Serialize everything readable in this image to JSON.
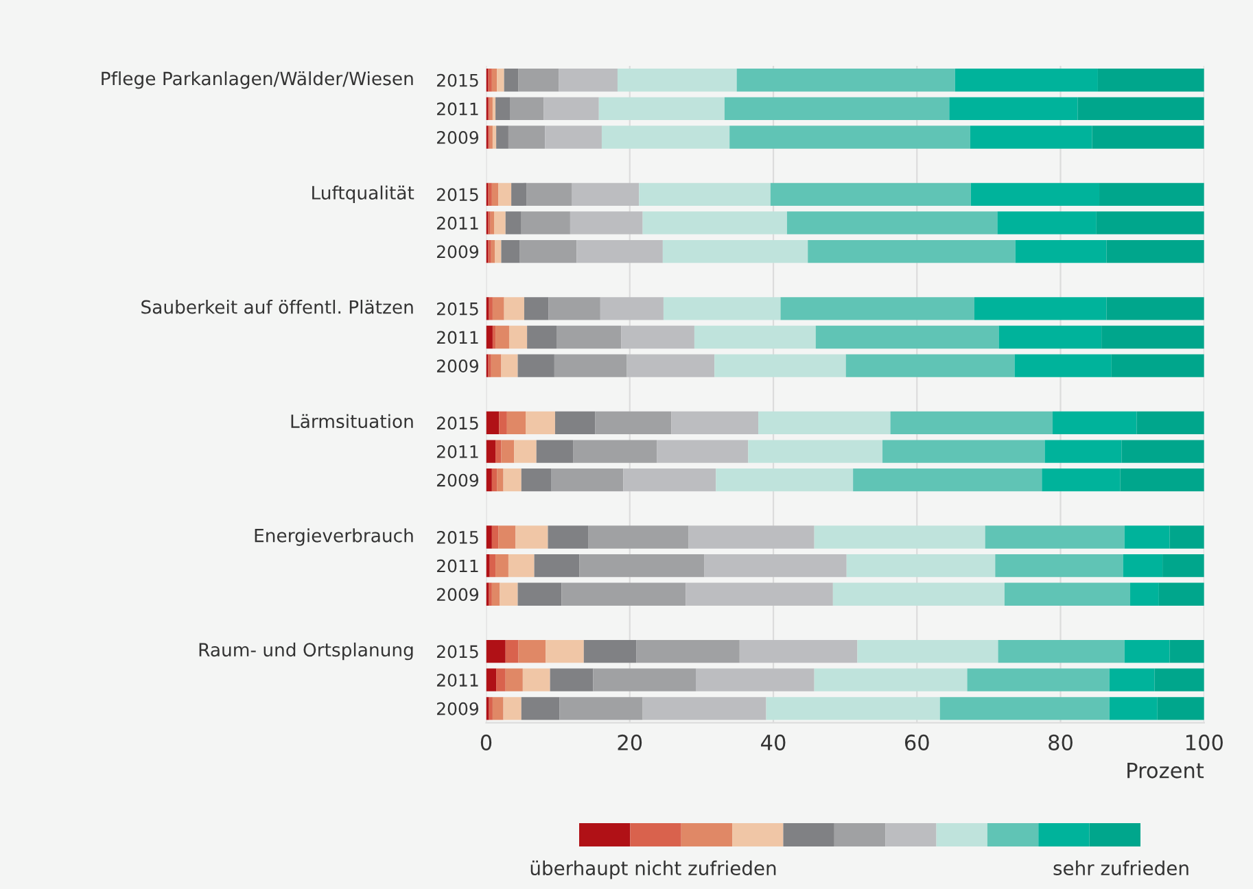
{
  "chart_data": {
    "type": "bar",
    "orientation": "horizontal",
    "stacked": true,
    "categories": [
      "2015",
      "2011",
      "2009",
      null,
      "2015",
      "2011",
      "2009",
      null,
      "2015",
      "2011",
      "2009",
      null,
      "2015",
      "2011",
      "2009",
      null,
      "2015",
      "2011",
      "2009",
      null,
      "2015",
      "2011",
      "2009"
    ],
    "series": [
      {
        "color": "#b01116",
        "values": [
          0.3,
          0.3,
          0.3,
          null,
          0.3,
          0.3,
          0.3,
          null,
          0.4,
          0.9,
          0.3,
          null,
          1.8,
          1.3,
          0.8,
          null,
          0.8,
          0.5,
          0.4,
          null,
          2.7,
          1.4,
          0.4
        ]
      },
      {
        "color": "#d9624d",
        "values": [
          0.5,
          0.2,
          0.2,
          null,
          0.5,
          0.3,
          0.4,
          null,
          0.5,
          0.4,
          0.4,
          null,
          1.1,
          0.8,
          0.7,
          null,
          0.9,
          0.8,
          0.4,
          null,
          1.8,
          1.3,
          0.5
        ]
      },
      {
        "color": "#e08866",
        "values": [
          0.7,
          0.4,
          0.4,
          null,
          0.9,
          0.5,
          0.5,
          null,
          1.6,
          1.9,
          1.4,
          null,
          2.6,
          1.8,
          0.9,
          null,
          2.4,
          1.8,
          1.1,
          null,
          3.8,
          2.4,
          1.5
        ]
      },
      {
        "color": "#f0c6a6",
        "values": [
          1.0,
          0.4,
          0.5,
          null,
          1.8,
          1.6,
          0.9,
          null,
          2.8,
          2.5,
          2.3,
          null,
          4.1,
          3.1,
          2.5,
          null,
          4.5,
          3.6,
          2.5,
          null,
          5.3,
          3.8,
          2.5
        ]
      },
      {
        "color": "#808184",
        "values": [
          2.0,
          2.0,
          1.7,
          null,
          2.1,
          2.2,
          2.6,
          null,
          3.4,
          4.1,
          5.1,
          null,
          5.6,
          5.1,
          4.2,
          null,
          5.6,
          6.3,
          6.1,
          null,
          7.3,
          6.0,
          5.3
        ]
      },
      {
        "color": "#a0a1a3",
        "values": [
          5.6,
          4.7,
          5.1,
          null,
          6.3,
          6.8,
          7.9,
          null,
          7.2,
          9.0,
          10.1,
          null,
          10.6,
          11.7,
          10.0,
          null,
          14.0,
          17.4,
          17.3,
          null,
          14.4,
          14.3,
          11.6
        ]
      },
      {
        "color": "#bcbdc0",
        "values": [
          8.2,
          7.7,
          7.9,
          null,
          9.4,
          10.1,
          12.0,
          null,
          8.8,
          10.2,
          12.2,
          null,
          12.1,
          12.7,
          12.9,
          null,
          17.5,
          19.8,
          20.5,
          null,
          16.4,
          16.5,
          17.2
        ]
      },
      {
        "color": "#bfe3dc",
        "values": [
          16.6,
          17.5,
          17.8,
          null,
          18.3,
          20.1,
          20.2,
          null,
          16.3,
          16.9,
          18.3,
          null,
          18.4,
          18.7,
          19.1,
          null,
          23.8,
          20.7,
          23.9,
          null,
          19.6,
          21.3,
          24.2
        ]
      },
      {
        "color": "#60c4b5",
        "values": [
          30.4,
          31.3,
          33.5,
          null,
          27.9,
          29.3,
          28.9,
          null,
          27.0,
          25.5,
          23.5,
          null,
          22.6,
          22.6,
          26.3,
          null,
          19.4,
          17.8,
          17.5,
          null,
          17.6,
          19.8,
          23.6
        ]
      },
      {
        "color": "#00b39b",
        "values": [
          19.9,
          17.9,
          17.0,
          null,
          17.9,
          13.8,
          12.7,
          null,
          18.4,
          14.3,
          13.5,
          null,
          11.7,
          10.7,
          10.9,
          null,
          6.3,
          5.5,
          4.0,
          null,
          6.3,
          6.3,
          6.7
        ]
      },
      {
        "color": "#00a68c",
        "values": [
          14.8,
          17.6,
          15.6,
          null,
          14.6,
          15.0,
          13.6,
          null,
          13.6,
          14.3,
          12.9,
          null,
          9.4,
          11.5,
          11.7,
          null,
          4.8,
          5.8,
          6.3,
          null,
          4.8,
          6.9,
          6.5
        ]
      }
    ],
    "xlim": [
      0,
      100
    ],
    "xticks": [
      0,
      20,
      40,
      60,
      80,
      100
    ],
    "xlabel": "Prozent",
    "grid": "x",
    "annotations": [
      "Pflege Parkanlagen/Wälder/Wiesen",
      "Luftqualität",
      "Sauberkeit auf öffentl. Plätzen",
      "Lärmsituation",
      "Energieverbrauch",
      "Raum- und Ortsplanung",
      "überhaupt nicht zufrieden",
      "sehr zufrieden"
    ]
  }
}
